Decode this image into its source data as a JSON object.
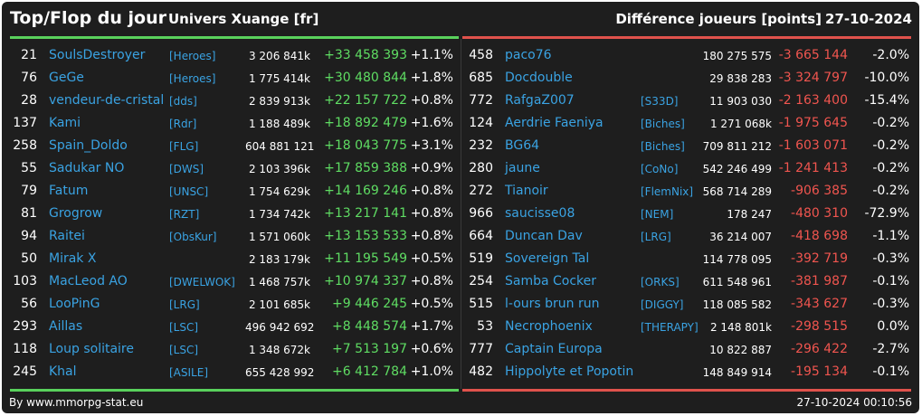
{
  "header": {
    "title": "Top/Flop du jour",
    "univers": "Univers Xuange [fr]",
    "metric": "Différence joueurs [points]",
    "date": "27-10-2024"
  },
  "top": [
    {
      "rank": "21",
      "name": "SoulsDestroyer",
      "tag": "[Heroes]",
      "score": "3 206 841k",
      "diff": "+33 458 393",
      "pct": "+1.1%"
    },
    {
      "rank": "76",
      "name": "GeGe",
      "tag": "[Heroes]",
      "score": "1 775 414k",
      "diff": "+30 480 844",
      "pct": "+1.8%"
    },
    {
      "rank": "28",
      "name": "vendeur-de-cristal",
      "tag": "[dds]",
      "score": "2 839 913k",
      "diff": "+22 157 722",
      "pct": "+0.8%"
    },
    {
      "rank": "137",
      "name": "Kami",
      "tag": "[Rdr]",
      "score": "1 188 489k",
      "diff": "+18 892 479",
      "pct": "+1.6%"
    },
    {
      "rank": "258",
      "name": "Spain_Doldo",
      "tag": "[FLG]",
      "score": "604 881 121",
      "diff": "+18 043 775",
      "pct": "+3.1%"
    },
    {
      "rank": "55",
      "name": "Sadukar NO",
      "tag": "[DWS]",
      "score": "2 103 396k",
      "diff": "+17 859 388",
      "pct": "+0.9%"
    },
    {
      "rank": "79",
      "name": "Fatum",
      "tag": "[UNSC]",
      "score": "1 754 629k",
      "diff": "+14 169 246",
      "pct": "+0.8%"
    },
    {
      "rank": "81",
      "name": "Grogrow",
      "tag": "[RZT]",
      "score": "1 734 742k",
      "diff": "+13 217 141",
      "pct": "+0.8%"
    },
    {
      "rank": "94",
      "name": "Raitei",
      "tag": "[ObsKur]",
      "score": "1 571 060k",
      "diff": "+13 153 533",
      "pct": "+0.8%"
    },
    {
      "rank": "50",
      "name": "Mirak X",
      "tag": "",
      "score": "2 183 179k",
      "diff": "+11 195 549",
      "pct": "+0.5%"
    },
    {
      "rank": "103",
      "name": "MacLeod AO",
      "tag": "[DWELWOK]",
      "score": "1 468 757k",
      "diff": "+10 974 337",
      "pct": "+0.8%"
    },
    {
      "rank": "56",
      "name": "LooPinG",
      "tag": "[LRG]",
      "score": "2 101 685k",
      "diff": "+9 446 245",
      "pct": "+0.5%"
    },
    {
      "rank": "293",
      "name": "Aillas",
      "tag": "[LSC]",
      "score": "496 942 692",
      "diff": "+8 448 574",
      "pct": "+1.7%"
    },
    {
      "rank": "118",
      "name": "Loup solitaire",
      "tag": "[LSC]",
      "score": "1 348 672k",
      "diff": "+7 513 197",
      "pct": "+0.6%"
    },
    {
      "rank": "245",
      "name": "Khal",
      "tag": "[ASILE]",
      "score": "655 428 992",
      "diff": "+6 412 784",
      "pct": "+1.0%"
    }
  ],
  "flop": [
    {
      "rank": "458",
      "name": "paco76",
      "tag": "",
      "score": "180 275 575",
      "diff": "-3 665 144",
      "pct": "-2.0%"
    },
    {
      "rank": "685",
      "name": "Docdouble",
      "tag": "",
      "score": "29 838 283",
      "diff": "-3 324 797",
      "pct": "-10.0%"
    },
    {
      "rank": "772",
      "name": "RafgaZ007",
      "tag": "[S33D]",
      "score": "11 903 030",
      "diff": "-2 163 400",
      "pct": "-15.4%"
    },
    {
      "rank": "124",
      "name": "Aerdrie Faeniya",
      "tag": "[Biches]",
      "score": "1 271 068k",
      "diff": "-1 975 645",
      "pct": "-0.2%"
    },
    {
      "rank": "232",
      "name": "BG64",
      "tag": "[Biches]",
      "score": "709 811 212",
      "diff": "-1 603 071",
      "pct": "-0.2%"
    },
    {
      "rank": "280",
      "name": "jaune",
      "tag": "[CoNo]",
      "score": "542 246 499",
      "diff": "-1 241 413",
      "pct": "-0.2%"
    },
    {
      "rank": "272",
      "name": "Tianoir",
      "tag": "[FlemNix]",
      "score": "568 714 289",
      "diff": "-906 385",
      "pct": "-0.2%"
    },
    {
      "rank": "966",
      "name": "saucisse08",
      "tag": "[NEM]",
      "score": "178 247",
      "diff": "-480 310",
      "pct": "-72.9%"
    },
    {
      "rank": "664",
      "name": "Duncan Dav",
      "tag": "[LRG]",
      "score": "36 214 007",
      "diff": "-418 698",
      "pct": "-1.1%"
    },
    {
      "rank": "519",
      "name": "Sovereign Tal",
      "tag": "",
      "score": "114 778 095",
      "diff": "-392 719",
      "pct": "-0.3%"
    },
    {
      "rank": "254",
      "name": "Samba Cocker",
      "tag": "[ORKS]",
      "score": "611 548 961",
      "diff": "-381 987",
      "pct": "-0.1%"
    },
    {
      "rank": "515",
      "name": "l-ours brun run",
      "tag": "[DIGGY]",
      "score": "118 085 582",
      "diff": "-343 627",
      "pct": "-0.3%"
    },
    {
      "rank": "53",
      "name": "Necrophoenix",
      "tag": "[THERAPY]",
      "score": "2 148 801k",
      "diff": "-298 515",
      "pct": "0.0%"
    },
    {
      "rank": "777",
      "name": "Captain Europa",
      "tag": "",
      "score": "10 822 887",
      "diff": "-296 422",
      "pct": "-2.7%"
    },
    {
      "rank": "482",
      "name": "Hippolyte et Popotin",
      "tag": "",
      "score": "148 849 914",
      "diff": "-195 134",
      "pct": "-0.1%"
    }
  ],
  "footer": {
    "source": "By www.mmorpg-stat.eu",
    "timestamp": "27-10-2024 00:10:56"
  },
  "colors": {
    "background": "#1e1e1e",
    "positive": "#5fdd63",
    "negative": "#f0554f",
    "link": "#3aa3e3",
    "bar_green": "#59d15c",
    "bar_red": "#e0524c"
  }
}
